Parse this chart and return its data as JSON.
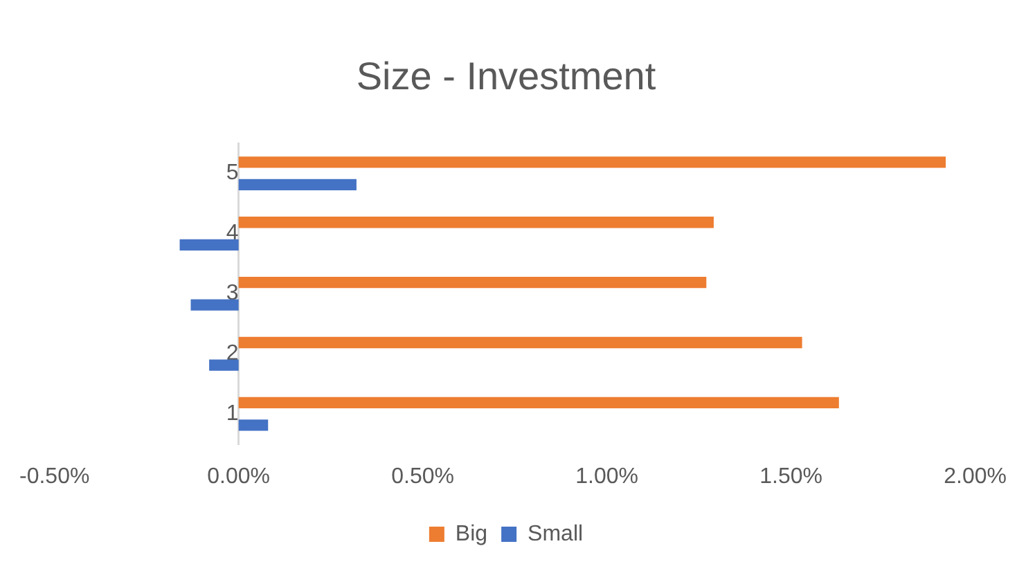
{
  "chart_data": {
    "type": "bar",
    "orientation": "horizontal",
    "title": "Size - Investment",
    "categories": [
      "5",
      "4",
      "3",
      "2",
      "1"
    ],
    "series": [
      {
        "name": "Big",
        "color": "#ed7d31",
        "values": [
          1.92,
          1.29,
          1.27,
          1.53,
          1.63
        ]
      },
      {
        "name": "Small",
        "color": "#4472c4",
        "values": [
          0.32,
          -0.16,
          -0.13,
          -0.08,
          0.08
        ]
      }
    ],
    "xlim": [
      -0.5,
      2
    ],
    "xticks": [
      {
        "value": -0.5,
        "label": "-0.50%"
      },
      {
        "value": 0,
        "label": "0.00%"
      },
      {
        "value": 0.5,
        "label": "0.50%"
      },
      {
        "value": 1,
        "label": "1.00%"
      },
      {
        "value": 1.5,
        "label": "1.50%"
      },
      {
        "value": 2,
        "label": "2.00%"
      }
    ],
    "grid": false,
    "legend": "bottom"
  }
}
